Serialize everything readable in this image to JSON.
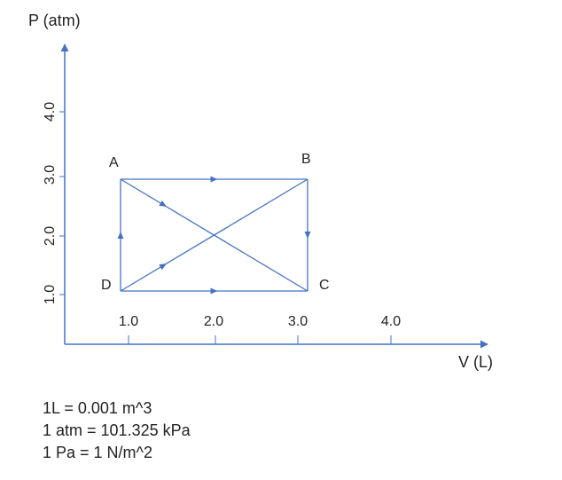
{
  "axes": {
    "y_label": "P (atm)",
    "x_label": "V (L)",
    "y_ticks": [
      "1.0",
      "2.0",
      "3.0",
      "4.0"
    ],
    "x_ticks": [
      "1.0",
      "2.0",
      "3.0",
      "4.0"
    ],
    "axis_color": "#4472c4"
  },
  "points": [
    {
      "name": "A",
      "V": 1.0,
      "P": 3.0
    },
    {
      "name": "B",
      "V": 3.0,
      "P": 3.0
    },
    {
      "name": "C",
      "V": 3.0,
      "P": 1.0
    },
    {
      "name": "D",
      "V": 1.0,
      "P": 1.0
    }
  ],
  "paths": [
    {
      "from": "A",
      "to": "B"
    },
    {
      "from": "B",
      "to": "C"
    },
    {
      "from": "D",
      "to": "C"
    },
    {
      "from": "D",
      "to": "A"
    },
    {
      "from": "A",
      "to": "C"
    },
    {
      "from": "D",
      "to": "B"
    }
  ],
  "line_color": "#4472c4",
  "notes": [
    "1L = 0.001 m^3",
    "1 atm = 101.325 kPa",
    "1 Pa = 1 N/m^2"
  ]
}
